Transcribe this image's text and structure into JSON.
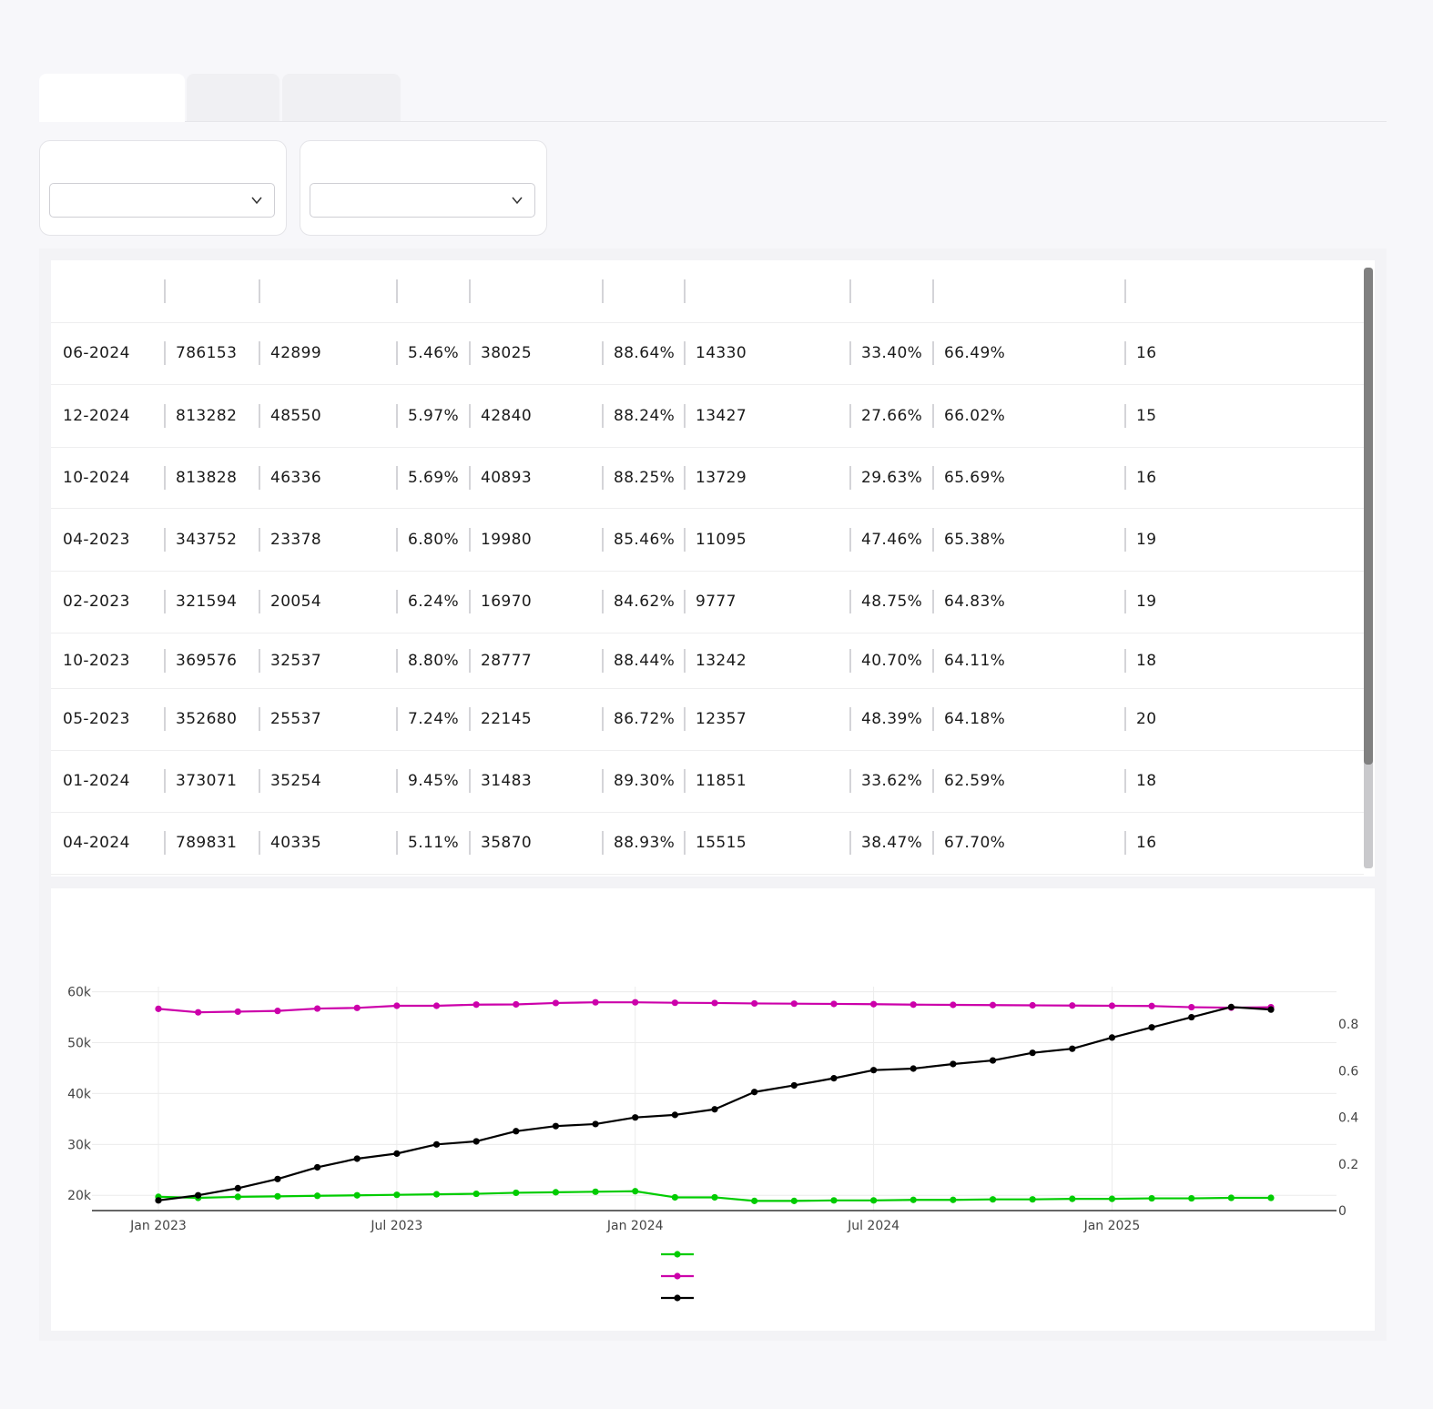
{
  "tabs": [
    {
      "label": ""
    },
    {
      "label": ""
    },
    {
      "label": ""
    }
  ],
  "filters": [
    {
      "label": "",
      "value": ""
    },
    {
      "label": "",
      "value": ""
    }
  ],
  "table": {
    "headers": [
      "",
      "",
      "",
      "",
      "",
      "",
      "",
      "",
      "",
      ""
    ],
    "rows": [
      [
        "06-2024",
        "786153",
        "42899",
        "5.46%",
        "38025",
        "88.64%",
        "14330",
        "33.40%",
        "66.49%",
        "16"
      ],
      [
        "12-2024",
        "813282",
        "48550",
        "5.97%",
        "42840",
        "88.24%",
        "13427",
        "27.66%",
        "66.02%",
        "15"
      ],
      [
        "10-2024",
        "813828",
        "46336",
        "5.69%",
        "40893",
        "88.25%",
        "13729",
        "29.63%",
        "65.69%",
        "16"
      ],
      [
        "04-2023",
        "343752",
        "23378",
        "6.80%",
        "19980",
        "85.46%",
        "11095",
        "47.46%",
        "65.38%",
        "19"
      ],
      [
        "02-2023",
        "321594",
        "20054",
        "6.24%",
        "16970",
        "84.62%",
        "9777",
        "48.75%",
        "64.83%",
        "19"
      ],
      [
        "10-2023",
        "369576",
        "32537",
        "8.80%",
        "28777",
        "88.44%",
        "13242",
        "40.70%",
        "64.11%",
        "18"
      ],
      [
        "05-2023",
        "352680",
        "25537",
        "7.24%",
        "22145",
        "86.72%",
        "12357",
        "48.39%",
        "64.18%",
        "20"
      ],
      [
        "01-2024",
        "373071",
        "35254",
        "9.45%",
        "31483",
        "89.30%",
        "11851",
        "33.62%",
        "62.59%",
        "18"
      ],
      [
        "04-2024",
        "789831",
        "40335",
        "5.11%",
        "35870",
        "88.93%",
        "15515",
        "38.47%",
        "67.70%",
        "16"
      ]
    ]
  },
  "chart_data": {
    "type": "line",
    "title": "",
    "x": [
      "2023-01",
      "2023-02",
      "2023-03",
      "2023-04",
      "2023-05",
      "2023-06",
      "2023-07",
      "2023-08",
      "2023-09",
      "2023-10",
      "2023-11",
      "2023-12",
      "2024-01",
      "2024-02",
      "2024-03",
      "2024-04",
      "2024-05",
      "2024-06",
      "2024-07",
      "2024-08",
      "2024-09",
      "2024-10",
      "2024-11",
      "2024-12",
      "2025-01",
      "2025-02",
      "2025-03",
      "2025-04",
      "2025-05"
    ],
    "x_tick_labels": [
      "Jan 2023",
      "Jul 2023",
      "Jan 2024",
      "Jul 2024",
      "Jan 2025"
    ],
    "y_left_ticks": [
      "20k",
      "30k",
      "40k",
      "50k",
      "60k"
    ],
    "y_right_ticks": [
      "0",
      "0.2",
      "0.4",
      "0.6",
      "0.8"
    ],
    "y_left_range": [
      17000,
      61000
    ],
    "y_right_range": [
      0,
      0.96
    ],
    "grid": true,
    "legend_placement": "bottom-center",
    "series": [
      {
        "axis": "left",
        "color": "#00cc00",
        "values": [
          19700,
          19500,
          19700,
          19800,
          19900,
          20000,
          20100,
          20200,
          20300,
          20500,
          20600,
          20700,
          20800,
          19600,
          19600,
          18900,
          18900,
          19000,
          19000,
          19100,
          19100,
          19200,
          19200,
          19300,
          19300,
          19400,
          19400,
          19500,
          19500
        ]
      },
      {
        "axis": "right",
        "color": "#cc00aa",
        "values": [
          0.865,
          0.85,
          0.853,
          0.856,
          0.866,
          0.869,
          0.878,
          0.878,
          0.883,
          0.884,
          0.89,
          0.893,
          0.893,
          0.891,
          0.89,
          0.888,
          0.887,
          0.886,
          0.885,
          0.883,
          0.882,
          0.881,
          0.88,
          0.879,
          0.878,
          0.877,
          0.872,
          0.87,
          0.872
        ]
      },
      {
        "axis": "left",
        "color": "#000000",
        "values": [
          19000,
          20000,
          21400,
          23200,
          25500,
          27200,
          28200,
          30000,
          30600,
          32600,
          33600,
          34000,
          35300,
          35800,
          36900,
          40300,
          41600,
          43000,
          44600,
          44900,
          45800,
          46500,
          48000,
          48800,
          51000,
          53000,
          55000,
          57000,
          56500
        ]
      }
    ]
  }
}
